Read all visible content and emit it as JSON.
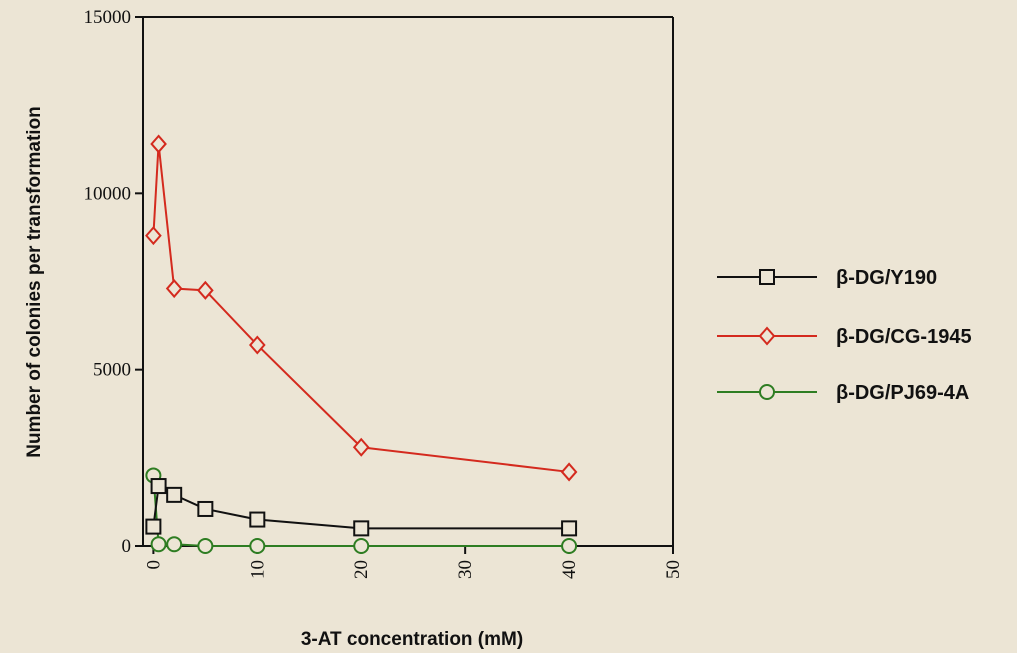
{
  "chart_data": {
    "type": "line",
    "xlabel": "3-AT concentration (mM)",
    "ylabel": "Number of colonies per transformation",
    "xlim": [
      -1,
      50
    ],
    "ylim": [
      0,
      15000
    ],
    "x_ticks": [
      0,
      10,
      20,
      30,
      40,
      50
    ],
    "y_ticks": [
      0,
      5000,
      10000,
      15000
    ],
    "grid": false,
    "legend_position": "right",
    "series": [
      {
        "name": "β-DG/Y190",
        "marker": "square",
        "color": "#111111",
        "x": [
          0,
          0.5,
          2,
          5,
          10,
          20,
          40
        ],
        "y": [
          550,
          1700,
          1450,
          1050,
          750,
          500,
          500
        ]
      },
      {
        "name": "β-DG/CG-1945",
        "marker": "diamond",
        "color": "#d42a1e",
        "x": [
          0,
          0.5,
          2,
          5,
          10,
          20,
          40
        ],
        "y": [
          8800,
          11400,
          7300,
          7250,
          5700,
          2800,
          2100
        ]
      },
      {
        "name": "β-DG/PJ69-4A",
        "marker": "circle",
        "color": "#2e7d22",
        "x": [
          0,
          0.5,
          2,
          5,
          10,
          20,
          40
        ],
        "y": [
          2000,
          50,
          50,
          0,
          0,
          0,
          0
        ]
      }
    ]
  }
}
